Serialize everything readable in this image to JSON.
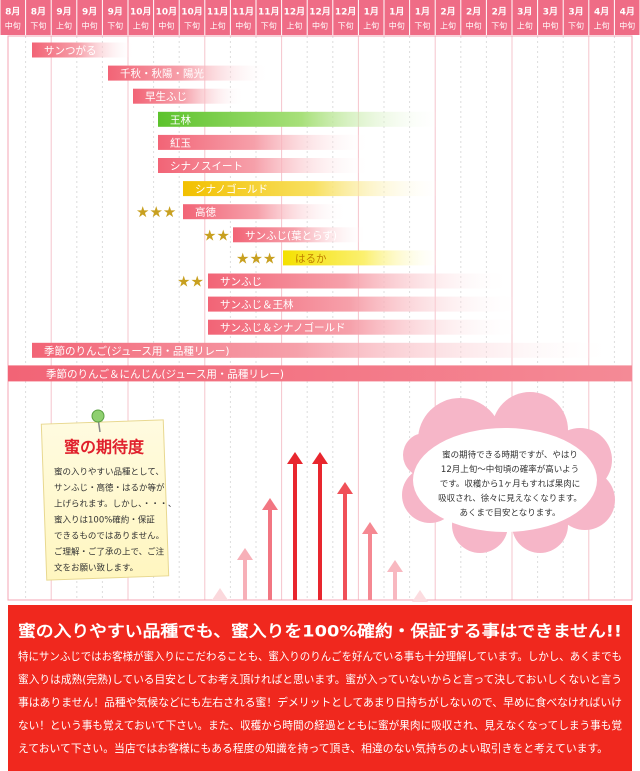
{
  "header": {
    "columns": [
      {
        "month": "8月",
        "period": "中旬"
      },
      {
        "month": "8月",
        "period": "下旬"
      },
      {
        "month": "9月",
        "period": "上旬"
      },
      {
        "month": "9月",
        "period": "中旬"
      },
      {
        "month": "9月",
        "period": "下旬"
      },
      {
        "month": "10月",
        "period": "上旬"
      },
      {
        "month": "10月",
        "period": "中旬"
      },
      {
        "month": "10月",
        "period": "下旬"
      },
      {
        "month": "11月",
        "period": "上旬"
      },
      {
        "month": "11月",
        "period": "中旬"
      },
      {
        "month": "11月",
        "period": "下旬"
      },
      {
        "month": "12月",
        "period": "上旬"
      },
      {
        "month": "12月",
        "period": "中旬"
      },
      {
        "month": "12月",
        "period": "下旬"
      },
      {
        "month": "1月",
        "period": "上旬"
      },
      {
        "month": "1月",
        "period": "中旬"
      },
      {
        "month": "1月",
        "period": "下旬"
      },
      {
        "month": "2月",
        "period": "上旬"
      },
      {
        "month": "2月",
        "period": "中旬"
      },
      {
        "month": "2月",
        "period": "下旬"
      },
      {
        "month": "3月",
        "period": "上旬"
      },
      {
        "month": "3月",
        "period": "中旬"
      },
      {
        "month": "3月",
        "period": "下旬"
      },
      {
        "month": "4月",
        "period": "上旬"
      },
      {
        "month": "4月",
        "period": "中旬"
      }
    ]
  },
  "rows": [
    {
      "label": "サンつがる"
    },
    {
      "label": "千秋・秋陽・陽光"
    },
    {
      "label": "早生ふじ"
    },
    {
      "label": "王林"
    },
    {
      "label": "紅玉"
    },
    {
      "label": "シナノスイート"
    },
    {
      "label": "シナノゴールド"
    },
    {
      "label": "高徳",
      "stars": "★★★"
    },
    {
      "label": "サンふじ(葉とらず)",
      "stars": "★★"
    },
    {
      "label": "はるか",
      "stars": "★★★"
    },
    {
      "label": "サンふじ",
      "stars": "★★"
    },
    {
      "label": "サンふじ＆王林"
    },
    {
      "label": "サンふじ＆シナノゴールド"
    },
    {
      "label": "季節のりんご(ジュース用・品種リレー)"
    },
    {
      "label": "季節のりんご＆にんじん(ジュース用・品種リレー)"
    }
  ],
  "note": {
    "title": "蜜の期待度",
    "lines": [
      "蜜の入りやすい品種として、",
      "サンふじ・高徳・はるか等が",
      "上げられます。しかし、・・・、",
      "蜜入りは100%確約・保証",
      "できるものではありません。",
      "ご理解・ご了承の上で、ご注",
      "文をお願い致します。"
    ]
  },
  "cloud": {
    "lines": [
      "蜜の期待できる時期ですが、やはり",
      "12月上旬～中旬頃の確率が高いよう",
      "です。収穫から1ヶ月もすれば果肉に",
      "吸収され、徐々に見えなくなります。",
      "あくまで目安となります。"
    ]
  },
  "notice": {
    "title": "蜜の入りやすい品種でも、蜜入りを100%確約・保証する事はできません!!",
    "lines": [
      "特にサンふじではお客様が蜜入りにこだわることも、蜜入りのりんごを好んでいる事も十分理解しています。しかし、あくまでも",
      "蜜入りは成熟(完熟)している目安としてお考え頂ければと思います。蜜が入っていないからと言って決しておいしくないと言う",
      "事はありません！品種や気候などにも左右される蜜！デメリットとしてあまり日持ちがしないので、早めに食べなければいけ",
      "ない！という事も覚えておいて下さい。また、収穫から時間の経過とともに蜜が果肉に吸収され、見えなくなってしまう事も覚",
      "えておいて下さい。当店ではお客様にもある程度の知識を持って頂き、相違のない気持ちのよい取引きをと考えています。"
    ]
  }
}
